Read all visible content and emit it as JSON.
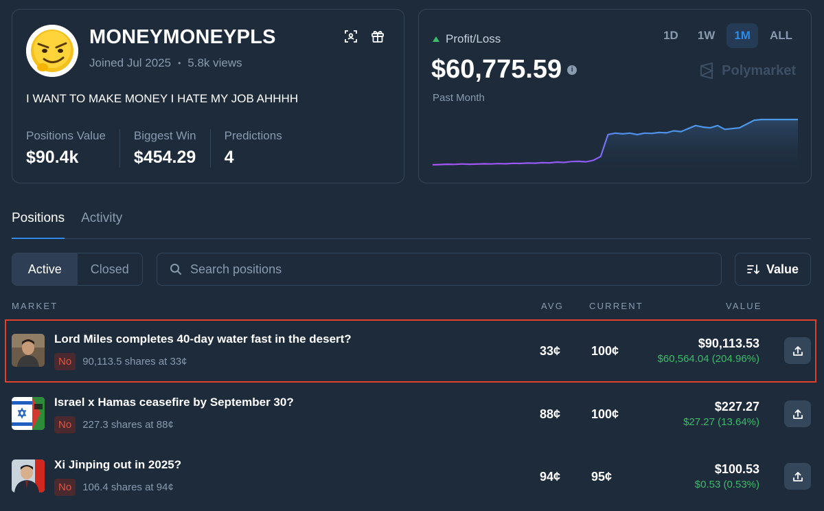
{
  "profile": {
    "username": "MONEYMONEYPLS",
    "joined": "Joined Jul 2025",
    "views": "5.8k views",
    "bio": "I WANT TO MAKE MONEY I HATE MY JOB AHHHH",
    "stats": [
      {
        "label": "Positions Value",
        "value": "$90.4k"
      },
      {
        "label": "Biggest Win",
        "value": "$454.29"
      },
      {
        "label": "Predictions",
        "value": "4"
      }
    ],
    "icons": [
      "scan-icon",
      "gift-icon"
    ]
  },
  "pnl": {
    "label": "Profit/Loss",
    "value": "$60,775.59",
    "period": "Past Month",
    "ranges": [
      "1D",
      "1W",
      "1M",
      "ALL"
    ],
    "active_range": "1M",
    "brand": "Polymarket",
    "colors": {
      "line_start": "#a855f7",
      "line_end": "#3b82f6",
      "up": "#3dbb6b"
    }
  },
  "chart_data": {
    "type": "line",
    "title": "",
    "xlabel": "",
    "ylabel": "",
    "x": [
      0,
      1,
      2,
      3,
      4,
      5,
      6,
      7,
      8,
      9,
      10,
      11,
      12,
      13,
      14,
      15,
      16,
      17,
      18,
      19,
      20,
      21,
      22,
      23,
      24,
      25,
      26,
      27,
      28,
      29,
      30,
      31,
      32,
      33,
      34,
      35,
      36,
      37,
      38,
      39,
      40,
      41,
      42,
      43,
      44,
      45,
      46,
      47,
      48,
      49,
      50
    ],
    "y": [
      0.0,
      0.2,
      0.4,
      0.3,
      0.6,
      0.4,
      0.5,
      0.7,
      0.6,
      0.8,
      0.7,
      1.0,
      0.9,
      1.2,
      1.1,
      1.4,
      1.3,
      1.8,
      1.6,
      2.2,
      2.3,
      2.0,
      3.0,
      5.5,
      20,
      21,
      20.5,
      21,
      20,
      21,
      20.8,
      21.4,
      21.2,
      22.5,
      22.0,
      24,
      26,
      25,
      24.5,
      26,
      23.5,
      24,
      24.5,
      27,
      29.5,
      30,
      30,
      30,
      30,
      30,
      30
    ],
    "grid": false,
    "legend": "none"
  },
  "tabs": [
    {
      "label": "Positions",
      "active": true
    },
    {
      "label": "Activity",
      "active": false
    }
  ],
  "filters": {
    "segments": [
      "Active",
      "Closed"
    ],
    "active_segment": "Active",
    "search_placeholder": "Search positions",
    "sort_label": "Value"
  },
  "table": {
    "headers": {
      "market": "MARKET",
      "avg": "AVG",
      "current": "CURRENT",
      "value": "VALUE"
    },
    "rows": [
      {
        "title": "Lord Miles completes 40-day water fast in the desert?",
        "outcome": "No",
        "shares": "90,113.5 shares at 33¢",
        "avg": "33¢",
        "current": "100¢",
        "value": "$90,113.53",
        "gain": "$60,564.04 (204.96%)",
        "thumb": "portrait-man"
      },
      {
        "title": "Israel x Hamas ceasefire by September 30?",
        "outcome": "No",
        "shares": "227.3 shares at 88¢",
        "avg": "88¢",
        "current": "100¢",
        "value": "$227.27",
        "gain": "$27.27 (13.64%)",
        "thumb": "flags-israel-palestine"
      },
      {
        "title": "Xi Jinping out in 2025?",
        "outcome": "No",
        "shares": "106.4 shares at 94¢",
        "avg": "94¢",
        "current": "95¢",
        "value": "$100.53",
        "gain": "$0.53 (0.53%)",
        "thumb": "portrait-xi"
      }
    ]
  }
}
